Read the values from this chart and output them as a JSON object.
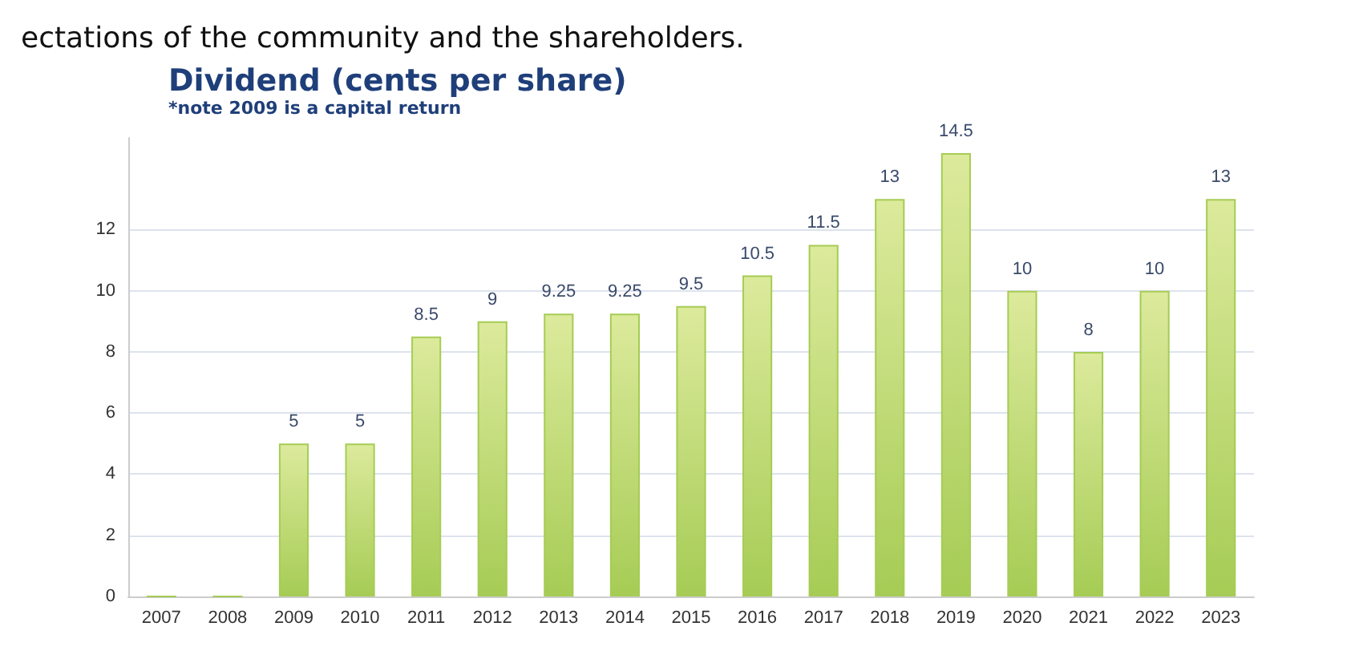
{
  "chart_data": {
    "type": "bar",
    "title": "Dividend (cents per share)",
    "subtitle": "*note 2009 is a capital return",
    "annotations": [
      "ectations of the community and the shareholders."
    ],
    "categories": [
      "2007",
      "2008",
      "2009",
      "2010",
      "2011",
      "2012",
      "2013",
      "2014",
      "2015",
      "2016",
      "2017",
      "2018",
      "2019",
      "2020",
      "2021",
      "2022",
      "2023"
    ],
    "values": [
      0,
      0,
      5,
      5,
      8.5,
      9,
      9.25,
      9.25,
      9.5,
      10.5,
      11.5,
      13,
      14.5,
      10,
      8,
      10,
      13
    ],
    "value_labels": [
      null,
      null,
      "5",
      "5",
      "8.5",
      "9",
      "9.25",
      "9.25",
      "9.5",
      "10.5",
      "11.5",
      "13",
      "14.5",
      "10",
      "8",
      "10",
      "13"
    ],
    "color": "#a6cc55",
    "ylim": [
      0,
      15
    ],
    "yticks": [
      0,
      2,
      4,
      6,
      8,
      10,
      12
    ],
    "grid": "y"
  }
}
